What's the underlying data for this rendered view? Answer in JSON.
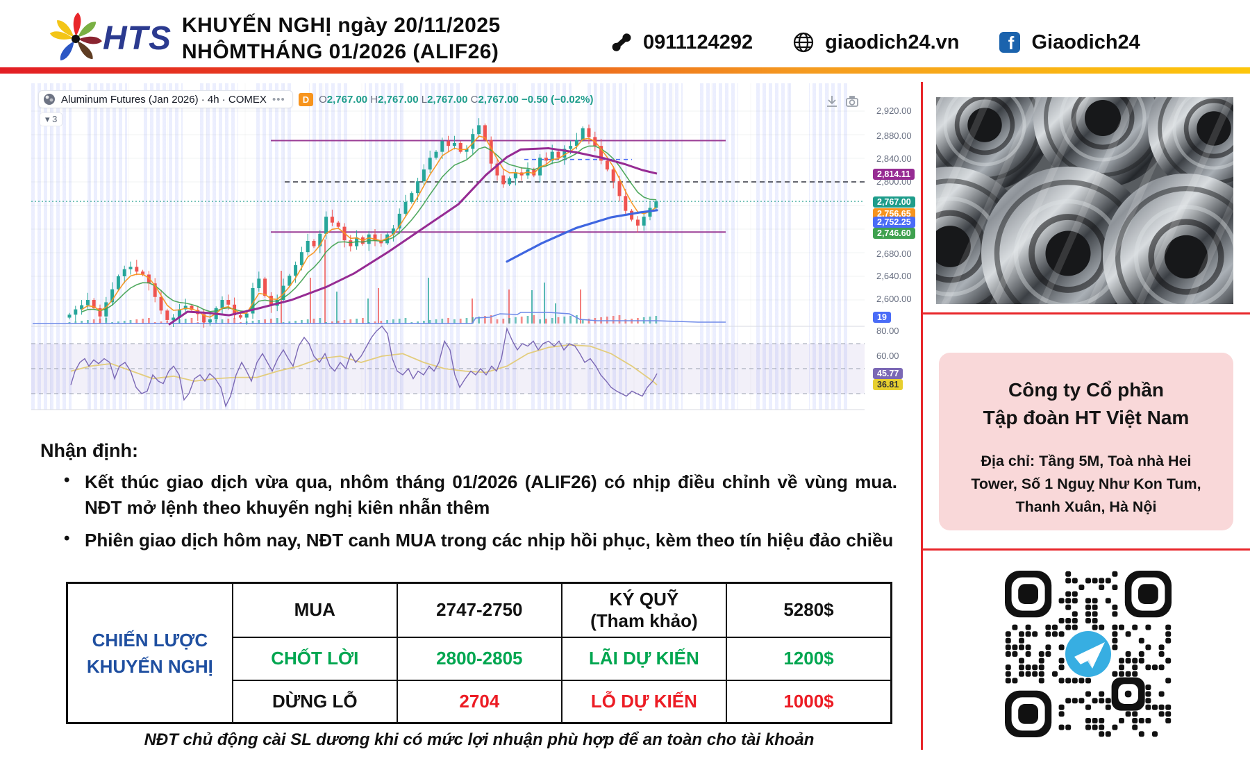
{
  "header": {
    "logo_text": "HTS",
    "title_line1": "KHUYẾN NGHỊ ngày 20/11/2025",
    "title_line2": "NHÔMTHÁNG 01/2026 (ALIF26)",
    "phone": "0911124292",
    "website": "giaodich24.vn",
    "facebook": "Giaodich24"
  },
  "chart": {
    "legend": {
      "symbol": "Aluminum Futures (Jan 2026) · 4h · COMEX",
      "more": "•••",
      "tf_badge": "D",
      "o_label": "O",
      "o": "2,767.00",
      "h_label": "H",
      "h": "2,767.00",
      "l_label": "L",
      "l": "2,767.00",
      "c_label": "C",
      "c": "2,767.00",
      "change": "−0.50 (−0.02%)"
    },
    "indicator_toggle_icon": "▾",
    "indicator_count": "3"
  },
  "chart_data": {
    "type": "candlestick",
    "title": "Aluminum Futures (Jan 2026) · 4h · COMEX",
    "timeframe": "4h",
    "exchange": "COMEX",
    "last_ohlc": {
      "open": 2767.0,
      "high": 2767.0,
      "low": 2767.0,
      "close": 2767.0,
      "change": -0.5,
      "change_pct": -0.02
    },
    "y_axis_ticks": [
      2920,
      2880,
      2840,
      2800,
      2680,
      2640,
      2600
    ],
    "levels": {
      "resistance_purple": 2870,
      "support_purple": 2715,
      "dashed_gray": 2800,
      "current_price_dotted": 2767,
      "alert_blue_dashed": 2838
    },
    "ma_last_values": {
      "purple_ma": 2814.11,
      "orange_ma": 2756.65,
      "blue_trend": 2752.25,
      "green_ma": 2746.6
    },
    "volume_step_last": 19,
    "oscillator": {
      "axis_labels": [
        80,
        60
      ],
      "purple_last": 45.77,
      "yellow_last": 36.81,
      "band": [
        70,
        30
      ],
      "mid": 50
    },
    "closes": [
      2575,
      2584,
      2591,
      2600,
      2586,
      2572,
      2596,
      2618,
      2640,
      2652,
      2656,
      2648,
      2643,
      2628,
      2605,
      2582,
      2566,
      2570,
      2584,
      2590,
      2583,
      2576,
      2562,
      2567,
      2586,
      2600,
      2592,
      2574,
      2570,
      2577,
      2620,
      2636,
      2607,
      2590,
      2600,
      2624,
      2641,
      2659,
      2681,
      2700,
      2691,
      2712,
      2741,
      2731,
      2724,
      2701,
      2691,
      2706,
      2695,
      2711,
      2700,
      2696,
      2711,
      2721,
      2746,
      2766,
      2781,
      2801,
      2821,
      2841,
      2851,
      2869,
      2861,
      2866,
      2851,
      2856,
      2881,
      2896,
      2871,
      2831,
      2811,
      2796,
      2806,
      2816,
      2811,
      2821,
      2811,
      2841,
      2836,
      2851,
      2841,
      2856,
      2861,
      2871,
      2891,
      2876,
      2861,
      2836,
      2821,
      2801,
      2776,
      2751,
      2736,
      2726,
      2741,
      2756,
      2767
    ],
    "purple_ma_path": [
      [
        198,
        2558
      ],
      [
        225,
        2580
      ],
      [
        255,
        2578
      ],
      [
        285,
        2574
      ],
      [
        325,
        2585
      ],
      [
        375,
        2600
      ],
      [
        425,
        2622
      ],
      [
        465,
        2645
      ],
      [
        515,
        2682
      ],
      [
        565,
        2722
      ],
      [
        615,
        2762
      ],
      [
        655,
        2812
      ],
      [
        685,
        2842
      ],
      [
        705,
        2855
      ],
      [
        745,
        2857
      ],
      [
        785,
        2850
      ],
      [
        825,
        2840
      ],
      [
        855,
        2830
      ],
      [
        880,
        2820
      ],
      [
        901,
        2814
      ]
    ],
    "blue_trend_path": [
      [
        685,
        2665
      ],
      [
        735,
        2696
      ],
      [
        785,
        2722
      ],
      [
        835,
        2740
      ],
      [
        875,
        2748
      ],
      [
        901,
        2752
      ]
    ],
    "blue_step": [
      [
        2,
        346
      ],
      [
        635,
        346
      ],
      [
        640,
        338
      ],
      [
        660,
        337
      ],
      [
        675,
        332
      ],
      [
        700,
        333
      ],
      [
        705,
        330
      ],
      [
        745,
        330
      ],
      [
        775,
        332
      ],
      [
        790,
        340
      ],
      [
        815,
        342
      ],
      [
        901,
        342
      ],
      [
        960,
        344
      ],
      [
        1000,
        344
      ]
    ],
    "volume_spikes": [
      [
        360,
        270,
        "r"
      ],
      [
        402,
        280,
        "r"
      ],
      [
        423,
        225,
        "r"
      ],
      [
        440,
        300,
        "t"
      ],
      [
        485,
        310,
        "t"
      ],
      [
        500,
        295,
        "r"
      ],
      [
        572,
        280,
        "t"
      ],
      [
        635,
        310,
        "r"
      ],
      [
        688,
        297,
        "r"
      ],
      [
        721,
        298,
        "t"
      ],
      [
        739,
        287,
        "t"
      ],
      [
        755,
        317,
        "t"
      ],
      [
        791,
        297,
        "r"
      ]
    ],
    "osc_purple": [
      [
        57,
        37
      ],
      [
        63,
        48
      ],
      [
        70,
        55
      ],
      [
        77,
        58
      ],
      [
        83,
        52
      ],
      [
        90,
        57
      ],
      [
        97,
        54
      ],
      [
        105,
        58
      ],
      [
        113,
        55
      ],
      [
        120,
        42
      ],
      [
        127,
        52
      ],
      [
        135,
        55
      ],
      [
        143,
        48
      ],
      [
        151,
        35
      ],
      [
        159,
        30
      ],
      [
        167,
        32
      ],
      [
        175,
        45
      ],
      [
        183,
        40
      ],
      [
        190,
        38
      ],
      [
        198,
        48
      ],
      [
        205,
        52
      ],
      [
        213,
        45
      ],
      [
        220,
        25
      ],
      [
        227,
        30
      ],
      [
        235,
        42
      ],
      [
        243,
        45
      ],
      [
        250,
        40
      ],
      [
        257,
        46
      ],
      [
        265,
        42
      ],
      [
        273,
        35
      ],
      [
        280,
        20
      ],
      [
        287,
        28
      ],
      [
        295,
        45
      ],
      [
        303,
        55
      ],
      [
        310,
        48
      ],
      [
        317,
        40
      ],
      [
        325,
        55
      ],
      [
        333,
        62
      ],
      [
        340,
        55
      ],
      [
        347,
        48
      ],
      [
        355,
        58
      ],
      [
        363,
        65
      ],
      [
        370,
        58
      ],
      [
        377,
        52
      ],
      [
        385,
        68
      ],
      [
        393,
        75
      ],
      [
        400,
        70
      ],
      [
        407,
        60
      ],
      [
        415,
        55
      ],
      [
        423,
        62
      ],
      [
        430,
        52
      ],
      [
        437,
        48
      ],
      [
        445,
        55
      ],
      [
        453,
        50
      ],
      [
        460,
        62
      ],
      [
        467,
        55
      ],
      [
        475,
        60
      ],
      [
        483,
        68
      ],
      [
        490,
        75
      ],
      [
        497,
        80
      ],
      [
        505,
        84
      ],
      [
        513,
        78
      ],
      [
        520,
        58
      ],
      [
        527,
        48
      ],
      [
        535,
        45
      ],
      [
        543,
        50
      ],
      [
        550,
        42
      ],
      [
        557,
        48
      ],
      [
        565,
        45
      ],
      [
        573,
        52
      ],
      [
        580,
        48
      ],
      [
        587,
        55
      ],
      [
        595,
        72
      ],
      [
        603,
        65
      ],
      [
        610,
        45
      ],
      [
        617,
        35
      ],
      [
        625,
        42
      ],
      [
        633,
        48
      ],
      [
        640,
        45
      ],
      [
        647,
        50
      ],
      [
        655,
        45
      ],
      [
        663,
        52
      ],
      [
        670,
        48
      ],
      [
        677,
        58
      ],
      [
        685,
        82
      ],
      [
        693,
        72
      ],
      [
        700,
        65
      ],
      [
        707,
        70
      ],
      [
        715,
        68
      ],
      [
        723,
        72
      ],
      [
        730,
        65
      ],
      [
        737,
        70
      ],
      [
        745,
        72
      ],
      [
        753,
        68
      ],
      [
        760,
        72
      ],
      [
        767,
        65
      ],
      [
        775,
        70
      ],
      [
        783,
        68
      ],
      [
        790,
        62
      ],
      [
        797,
        55
      ],
      [
        805,
        58
      ],
      [
        813,
        52
      ],
      [
        820,
        45
      ],
      [
        828,
        40
      ],
      [
        835,
        35
      ],
      [
        843,
        32
      ],
      [
        850,
        30
      ],
      [
        857,
        28
      ],
      [
        865,
        32
      ],
      [
        872,
        30
      ],
      [
        880,
        28
      ],
      [
        887,
        35
      ],
      [
        895,
        40
      ],
      [
        901,
        46
      ]
    ],
    "osc_yellow": [
      [
        57,
        48
      ],
      [
        85,
        52
      ],
      [
        115,
        54
      ],
      [
        145,
        48
      ],
      [
        175,
        42
      ],
      [
        205,
        44
      ],
      [
        235,
        40
      ],
      [
        265,
        42
      ],
      [
        295,
        43
      ],
      [
        325,
        43
      ],
      [
        355,
        48
      ],
      [
        385,
        52
      ],
      [
        415,
        58
      ],
      [
        445,
        60
      ],
      [
        475,
        55
      ],
      [
        505,
        60
      ],
      [
        535,
        62
      ],
      [
        565,
        55
      ],
      [
        595,
        50
      ],
      [
        625,
        48
      ],
      [
        655,
        47
      ],
      [
        685,
        52
      ],
      [
        715,
        62
      ],
      [
        745,
        67
      ],
      [
        775,
        69
      ],
      [
        805,
        68
      ],
      [
        835,
        62
      ],
      [
        865,
        52
      ],
      [
        880,
        46
      ],
      [
        895,
        40
      ],
      [
        901,
        37
      ]
    ],
    "axis_ticks": [
      [
        "2,920.00",
        40
      ],
      [
        "2,880.00",
        76
      ],
      [
        "2,840.00",
        109
      ],
      [
        "2,800.00",
        142
      ],
      [
        "2,680.00",
        246
      ],
      [
        "2,640.00",
        278
      ],
      [
        "2,600.00",
        311
      ],
      [
        "80.00",
        357
      ],
      [
        "60.00",
        393
      ]
    ],
    "axis_badges": [
      [
        "2,814.11",
        132,
        "#962b93",
        "#fff"
      ],
      [
        "2,767.00",
        172,
        "#1e9d8b",
        "#fff"
      ],
      [
        "2,756.65",
        189,
        "#f7941d",
        "#fff"
      ],
      [
        "2,752.25",
        201,
        "#4a6cf7",
        "#fff"
      ],
      [
        "2,746.60",
        217,
        "#3fa14f",
        "#fff"
      ],
      [
        "19",
        338,
        "#4a6cf7",
        "#fff"
      ],
      [
        "45.77",
        419,
        "#7b68b5",
        "#fff"
      ],
      [
        "36.81",
        435,
        "#e7cf2f",
        "#333"
      ]
    ]
  },
  "assessment": {
    "heading": "Nhận định:",
    "bullets": [
      "Kết thúc giao dịch vừa qua, nhôm tháng 01/2026 (ALIF26) có nhịp điều chỉnh về vùng mua. NĐT mở lệnh theo khuyến nghị kiên nhẫn thêm",
      "Phiên giao dịch hôm nay, NĐT canh MUA trong các nhịp hồi phục, kèm theo tín hiệu đảo chiều"
    ]
  },
  "table": {
    "strategy_label_line1": "CHIẾN LƯỢC",
    "strategy_label_line2": "KHUYẾN NGHỊ",
    "rows": [
      {
        "action": "MUA",
        "range": "2747-2750",
        "label_line1": "KÝ QUỸ",
        "label_line2": "(Tham khảo)",
        "value": "5280$"
      },
      {
        "action": "CHỐT LỜI",
        "range": "2800-2805",
        "label": "LÃI DỰ KIẾN",
        "value": "1200$"
      },
      {
        "action": "DỪNG LỖ",
        "range": "2704",
        "label": "LỖ DỰ KIẾN",
        "value": "1000$"
      }
    ]
  },
  "footer_note": "NĐT chủ động cài SL dương khi có mức lợi nhuận phù hợp để an toàn cho tài khoản",
  "company": {
    "name_line1": "Công ty Cổ phần",
    "name_line2": "Tập đoàn HT Việt Nam",
    "address": "Địa chỉ:  Tầng 5M, Toà nhà Hei Tower, Số 1 Nguỵ Như Kon Tum, Thanh Xuân, Hà Nội"
  },
  "colors": {
    "accent_red": "#e8262a",
    "candle_up": "#26a69a",
    "candle_down": "#ef5350",
    "ma_purple": "#962b93",
    "ma_orange": "#f7941d",
    "ma_green": "#3fa14f",
    "trend_blue": "#3f66e0",
    "osc_purple": "#7b68b5",
    "osc_yellow": "#e3cd7d",
    "table_blue": "#1f4fa0",
    "table_green": "#00a650",
    "table_red": "#ec1c24",
    "telegram_blue": "#37aee2"
  }
}
